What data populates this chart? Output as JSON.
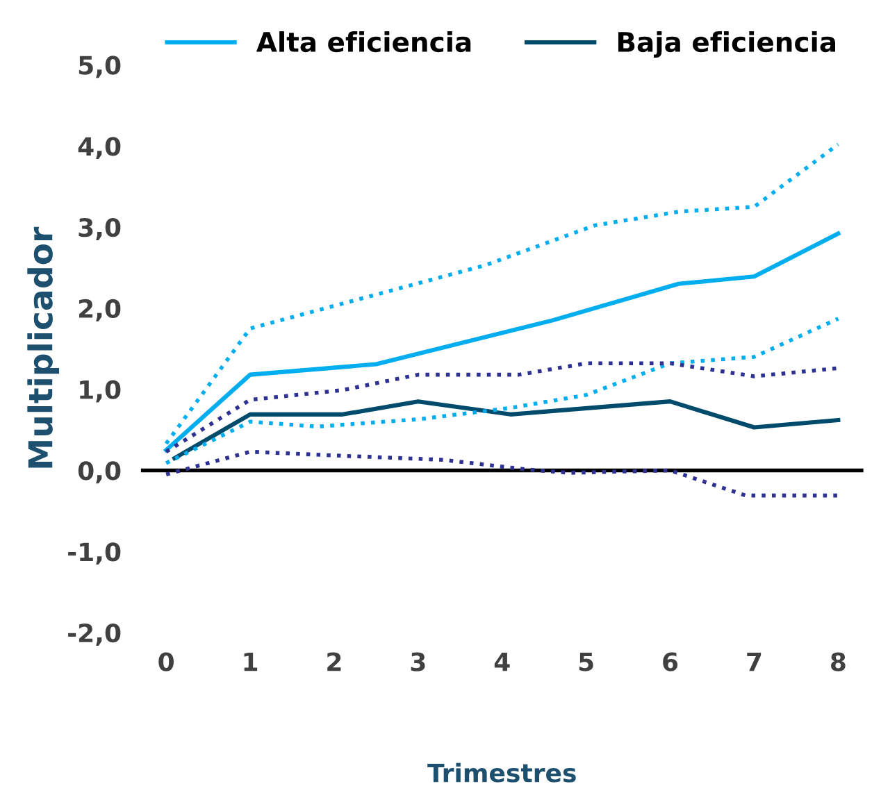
{
  "chart_data": {
    "type": "line",
    "xlabel": "Trimestres",
    "ylabel": "Multiplicador",
    "xlim": [
      -0.3,
      8.3
    ],
    "ylim": [
      -2,
      5
    ],
    "xticks": [
      0,
      1,
      2,
      3,
      4,
      5,
      6,
      7,
      8
    ],
    "yticks": [
      {
        "value": -2,
        "label": "-2,0"
      },
      {
        "value": -1,
        "label": "-1,0"
      },
      {
        "value": 0,
        "label": "0,0"
      },
      {
        "value": 1,
        "label": "1,0"
      },
      {
        "value": 2,
        "label": "2,0"
      },
      {
        "value": 3,
        "label": "3,0"
      },
      {
        "value": 4,
        "label": "4,0"
      },
      {
        "value": 5,
        "label": "5,0"
      }
    ],
    "grid": false,
    "legend": "top",
    "ref_lines": [
      {
        "axis": "y",
        "value": 0,
        "color": "#000000",
        "line_style": "solid"
      }
    ],
    "series": [
      {
        "name": "Alta eficiencia",
        "color": "#00aeef",
        "line_style": "solid",
        "x": [
          0,
          1,
          2.5,
          4.6,
          6.1,
          7,
          8
        ],
        "values": [
          0.25,
          1.18,
          1.31,
          1.85,
          2.3,
          2.39,
          2.92
        ]
      },
      {
        "name": "Baja eficiencia",
        "color": "#004b6b",
        "line_style": "solid",
        "x": [
          0.1,
          1,
          2.1,
          3,
          4.1,
          6,
          7,
          8
        ],
        "values": [
          0.15,
          0.69,
          0.69,
          0.85,
          0.69,
          0.85,
          0.53,
          0.62
        ]
      },
      {
        "color": "#00aeef",
        "line_style": "dotted",
        "x": [
          0,
          1,
          3.8,
          5.1,
          6.1,
          7,
          8
        ],
        "values": [
          0.33,
          1.75,
          2.53,
          3.02,
          3.19,
          3.25,
          4.02
        ]
      },
      {
        "color": "#00aeef",
        "line_style": "dotted",
        "x": [
          0,
          1,
          1.8,
          3,
          4.1,
          5,
          6,
          7,
          8
        ],
        "values": [
          0.09,
          0.6,
          0.54,
          0.63,
          0.77,
          0.93,
          1.32,
          1.4,
          1.87
        ]
      },
      {
        "color": "#2e3192",
        "line_style": "dotted",
        "x": [
          0,
          1,
          2.1,
          3,
          4.2,
          5,
          6,
          7,
          8
        ],
        "values": [
          0.23,
          0.87,
          0.99,
          1.18,
          1.18,
          1.32,
          1.32,
          1.16,
          1.26
        ]
      },
      {
        "color": "#2e3192",
        "line_style": "dotted",
        "x": [
          0,
          1,
          2.1,
          3.3,
          4.3,
          4.8,
          6,
          6.9,
          8
        ],
        "values": [
          -0.05,
          0.23,
          0.18,
          0.13,
          0.01,
          -0.03,
          0.0,
          -0.31,
          -0.31
        ]
      }
    ]
  }
}
